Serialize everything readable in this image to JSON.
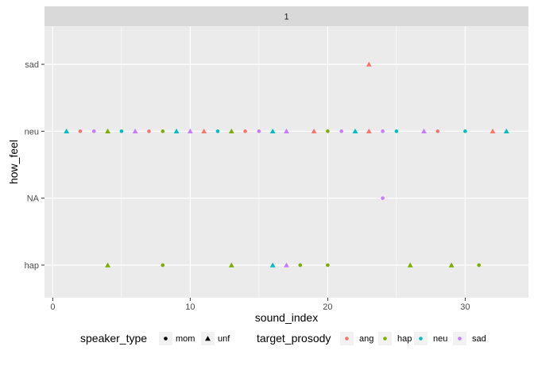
{
  "chart_data": {
    "type": "scatter",
    "facet_label": "1",
    "xlabel": "sound_index",
    "ylabel": "how_feel",
    "xlim": [
      -0.6,
      34.6
    ],
    "x_ticks": [
      0,
      10,
      20,
      30
    ],
    "y_categories": [
      "hap",
      "NA",
      "neu",
      "sad"
    ],
    "grid": true,
    "legend_position": "bottom",
    "colors": {
      "ang": "#F8766D",
      "hap": "#7CAE00",
      "neu": "#00BFC4",
      "sad": "#C77CFF"
    },
    "legends": [
      {
        "title": "speaker_type",
        "type": "shape",
        "items": [
          {
            "label": "mom",
            "shape": "circle"
          },
          {
            "label": "unf",
            "shape": "triangle"
          }
        ]
      },
      {
        "title": "target_prosody",
        "type": "color",
        "items": [
          {
            "label": "ang"
          },
          {
            "label": "hap"
          },
          {
            "label": "neu"
          },
          {
            "label": "sad"
          }
        ]
      }
    ],
    "points": [
      {
        "x": 1,
        "y": "neu",
        "prosody": "neu",
        "speaker": "unf"
      },
      {
        "x": 2,
        "y": "neu",
        "prosody": "ang",
        "speaker": "mom"
      },
      {
        "x": 3,
        "y": "neu",
        "prosody": "sad",
        "speaker": "mom"
      },
      {
        "x": 4,
        "y": "neu",
        "prosody": "hap",
        "speaker": "unf"
      },
      {
        "x": 4,
        "y": "hap",
        "prosody": "hap",
        "speaker": "unf"
      },
      {
        "x": 5,
        "y": "neu",
        "prosody": "neu",
        "speaker": "mom"
      },
      {
        "x": 6,
        "y": "neu",
        "prosody": "sad",
        "speaker": "unf"
      },
      {
        "x": 7,
        "y": "neu",
        "prosody": "ang",
        "speaker": "mom"
      },
      {
        "x": 8,
        "y": "neu",
        "prosody": "hap",
        "speaker": "mom"
      },
      {
        "x": 8,
        "y": "hap",
        "prosody": "hap",
        "speaker": "mom"
      },
      {
        "x": 9,
        "y": "neu",
        "prosody": "neu",
        "speaker": "unf"
      },
      {
        "x": 10,
        "y": "neu",
        "prosody": "sad",
        "speaker": "unf"
      },
      {
        "x": 11,
        "y": "neu",
        "prosody": "ang",
        "speaker": "unf"
      },
      {
        "x": 12,
        "y": "neu",
        "prosody": "neu",
        "speaker": "mom"
      },
      {
        "x": 13,
        "y": "neu",
        "prosody": "hap",
        "speaker": "unf"
      },
      {
        "x": 13,
        "y": "hap",
        "prosody": "hap",
        "speaker": "unf"
      },
      {
        "x": 14,
        "y": "neu",
        "prosody": "ang",
        "speaker": "mom"
      },
      {
        "x": 15,
        "y": "neu",
        "prosody": "sad",
        "speaker": "mom"
      },
      {
        "x": 16,
        "y": "neu",
        "prosody": "neu",
        "speaker": "unf"
      },
      {
        "x": 16,
        "y": "hap",
        "prosody": "neu",
        "speaker": "unf"
      },
      {
        "x": 17,
        "y": "neu",
        "prosody": "sad",
        "speaker": "unf"
      },
      {
        "x": 17,
        "y": "hap",
        "prosody": "sad",
        "speaker": "unf"
      },
      {
        "x": 18,
        "y": "hap",
        "prosody": "hap",
        "speaker": "mom"
      },
      {
        "x": 19,
        "y": "neu",
        "prosody": "ang",
        "speaker": "unf"
      },
      {
        "x": 20,
        "y": "neu",
        "prosody": "hap",
        "speaker": "mom"
      },
      {
        "x": 20,
        "y": "hap",
        "prosody": "hap",
        "speaker": "mom"
      },
      {
        "x": 21,
        "y": "neu",
        "prosody": "sad",
        "speaker": "mom"
      },
      {
        "x": 22,
        "y": "neu",
        "prosody": "neu",
        "speaker": "unf"
      },
      {
        "x": 23,
        "y": "neu",
        "prosody": "ang",
        "speaker": "unf"
      },
      {
        "x": 23,
        "y": "sad",
        "prosody": "ang",
        "speaker": "unf"
      },
      {
        "x": 24,
        "y": "neu",
        "prosody": "sad",
        "speaker": "mom"
      },
      {
        "x": 24,
        "y": "NA",
        "prosody": "sad",
        "speaker": "mom"
      },
      {
        "x": 25,
        "y": "neu",
        "prosody": "neu",
        "speaker": "mom"
      },
      {
        "x": 26,
        "y": "hap",
        "prosody": "hap",
        "speaker": "unf"
      },
      {
        "x": 27,
        "y": "neu",
        "prosody": "sad",
        "speaker": "unf"
      },
      {
        "x": 28,
        "y": "neu",
        "prosody": "ang",
        "speaker": "mom"
      },
      {
        "x": 29,
        "y": "hap",
        "prosody": "hap",
        "speaker": "unf"
      },
      {
        "x": 30,
        "y": "neu",
        "prosody": "neu",
        "speaker": "mom"
      },
      {
        "x": 31,
        "y": "hap",
        "prosody": "hap",
        "speaker": "mom"
      },
      {
        "x": 32,
        "y": "neu",
        "prosody": "ang",
        "speaker": "unf"
      },
      {
        "x": 33,
        "y": "neu",
        "prosody": "neu",
        "speaker": "unf"
      }
    ]
  }
}
